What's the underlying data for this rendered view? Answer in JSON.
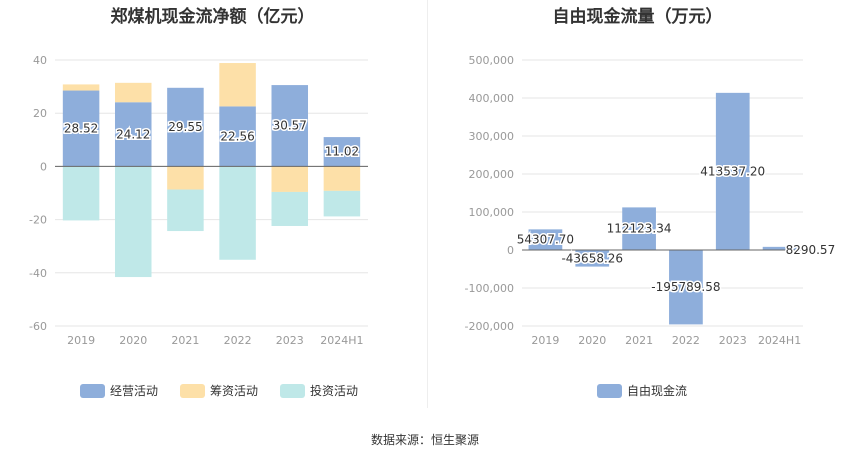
{
  "chart_data": [
    {
      "type": "bar",
      "stacked": true,
      "title": "郑煤机现金流净额（亿元）",
      "categories": [
        "2019",
        "2020",
        "2021",
        "2022",
        "2023",
        "2024H1"
      ],
      "ylim": [
        -60,
        40
      ],
      "yticks": [
        "40",
        "20",
        "0",
        "-20",
        "-40",
        "-60"
      ],
      "series": [
        {
          "name": "经营活动",
          "color": "#8eaedb",
          "values": [
            28.52,
            24.12,
            29.55,
            22.56,
            30.57,
            11.02
          ],
          "labels": [
            "28.52",
            "24.12",
            "29.55",
            "22.56",
            "30.57",
            "11.02"
          ]
        },
        {
          "name": "筹资活动",
          "color": "#fde0a8",
          "values": [
            2.3,
            7.3,
            -8.7,
            16.3,
            -9.6,
            -9.2
          ]
        },
        {
          "name": "投资活动",
          "color": "#bfe8e8",
          "values": [
            -20.3,
            -41.6,
            -15.6,
            -35.1,
            -12.8,
            -9.6
          ]
        }
      ],
      "legend": "bottom",
      "grid": true
    },
    {
      "type": "bar",
      "title": "自由现金流量（万元）",
      "categories": [
        "2019",
        "2020",
        "2021",
        "2022",
        "2023",
        "2024H1"
      ],
      "ylim": [
        -200000,
        500000
      ],
      "yticks": [
        "500,000",
        "400,000",
        "300,000",
        "200,000",
        "100,000",
        "0",
        "-100,000",
        "-200,000"
      ],
      "series": [
        {
          "name": "自由现金流",
          "color": "#8eaedb",
          "values": [
            54307.7,
            -43658.26,
            112123.34,
            -195789.58,
            413537.2,
            8290.57
          ],
          "labels": [
            "54307.70",
            "-43658.26",
            "112123.34",
            "-195789.58",
            "413537.20",
            "8290.57"
          ]
        }
      ],
      "legend": "bottom",
      "grid": true
    }
  ],
  "footer": {
    "source": "数据来源：恒生聚源"
  }
}
